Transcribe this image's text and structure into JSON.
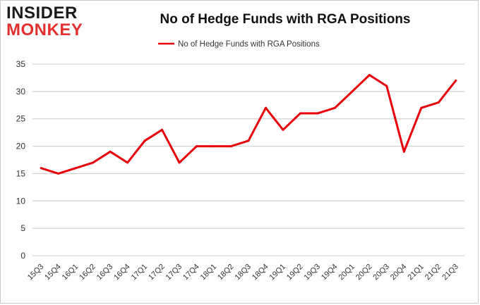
{
  "logo": {
    "line1": "INSIDER",
    "line2": "MONKEY"
  },
  "chart_data": {
    "type": "line",
    "title": "No of Hedge Funds with RGA Positions",
    "xlabel": "",
    "ylabel": "",
    "categories": [
      "15Q3",
      "15Q4",
      "16Q1",
      "16Q2",
      "16Q3",
      "16Q4",
      "17Q1",
      "17Q2",
      "17Q3",
      "17Q4",
      "18Q1",
      "18Q2",
      "18Q3",
      "18Q4",
      "19Q1",
      "19Q2",
      "19Q3",
      "19Q4",
      "20Q1",
      "20Q2",
      "20Q3",
      "20Q4",
      "21Q1",
      "21Q2",
      "21Q3"
    ],
    "series": [
      {
        "name": "No of Hedge Funds with RGA Positions",
        "values": [
          16,
          15,
          16,
          17,
          19,
          17,
          21,
          23,
          17,
          20,
          20,
          20,
          21,
          27,
          23,
          26,
          26,
          27,
          30,
          33,
          31,
          19,
          27,
          28,
          32
        ]
      }
    ],
    "ylim": [
      0,
      35
    ],
    "yticks": [
      0,
      5,
      10,
      15,
      20,
      25,
      30,
      35
    ],
    "grid": true,
    "legend": "top-center",
    "line_color": "#e8000b",
    "grid_color": "#c8c8c8"
  }
}
